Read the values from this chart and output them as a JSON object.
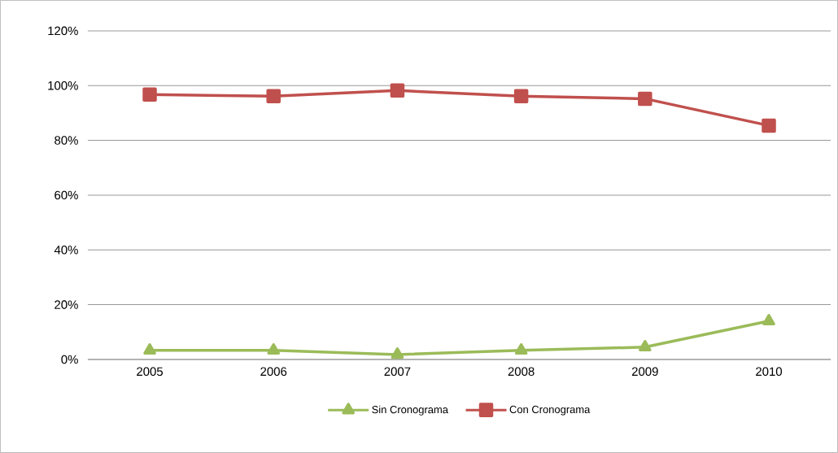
{
  "chart_data": {
    "type": "line",
    "categories": [
      "2005",
      "2006",
      "2007",
      "2008",
      "2009",
      "2010"
    ],
    "series": [
      {
        "name": "Sin Cronograma",
        "color": "#9bbb59",
        "marker": "triangle",
        "values": [
          3.3,
          3.3,
          1.8,
          3.3,
          4.5,
          14.0
        ]
      },
      {
        "name": "Con Cronograma",
        "color": "#c0504d",
        "marker": "square",
        "values": [
          96.7,
          96.1,
          98.2,
          96.1,
          95.2,
          85.4
        ]
      }
    ],
    "ylim": [
      0,
      120
    ],
    "yticks": [
      {
        "value": 0,
        "label": "0%"
      },
      {
        "value": 20,
        "label": "20%"
      },
      {
        "value": 40,
        "label": "40%"
      },
      {
        "value": 60,
        "label": "60%"
      },
      {
        "value": 80,
        "label": "80%"
      },
      {
        "value": 100,
        "label": "100%"
      },
      {
        "value": 120,
        "label": "120%"
      }
    ],
    "grid": "y",
    "legend": "bottom",
    "line_style": "solid"
  }
}
